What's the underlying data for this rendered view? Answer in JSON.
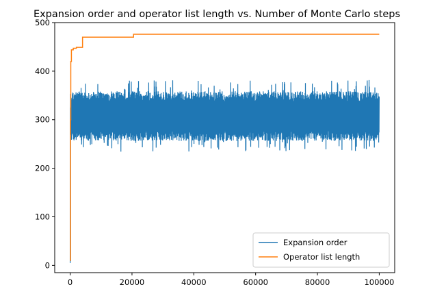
{
  "chart_data": {
    "type": "line",
    "title": "Expansion order and operator list length vs. Number of Monte Carlo steps",
    "xlabel": "",
    "ylabel": "",
    "xlim": [
      -5000,
      105000
    ],
    "ylim": [
      -15,
      500
    ],
    "xticks": [
      0,
      20000,
      40000,
      60000,
      80000,
      100000
    ],
    "yticks": [
      0,
      100,
      200,
      300,
      400,
      500
    ],
    "grid": false,
    "legend_position": "lower right",
    "series": [
      {
        "name": "Expansion order",
        "color": "#1f77b4",
        "style": "noisy-band",
        "x_range": [
          0,
          100000
        ],
        "start_value": 5,
        "mean": 305,
        "typical_min": 255,
        "typical_max": 360,
        "extreme_min": 234,
        "extreme_max": 382
      },
      {
        "name": "Operator list length",
        "color": "#ff7f0e",
        "style": "step",
        "points": [
          [
            0,
            10
          ],
          [
            100,
            300
          ],
          [
            200,
            420
          ],
          [
            400,
            444
          ],
          [
            1000,
            447
          ],
          [
            2000,
            449
          ],
          [
            4000,
            470
          ],
          [
            20500,
            476
          ],
          [
            100000,
            476
          ]
        ]
      }
    ]
  }
}
